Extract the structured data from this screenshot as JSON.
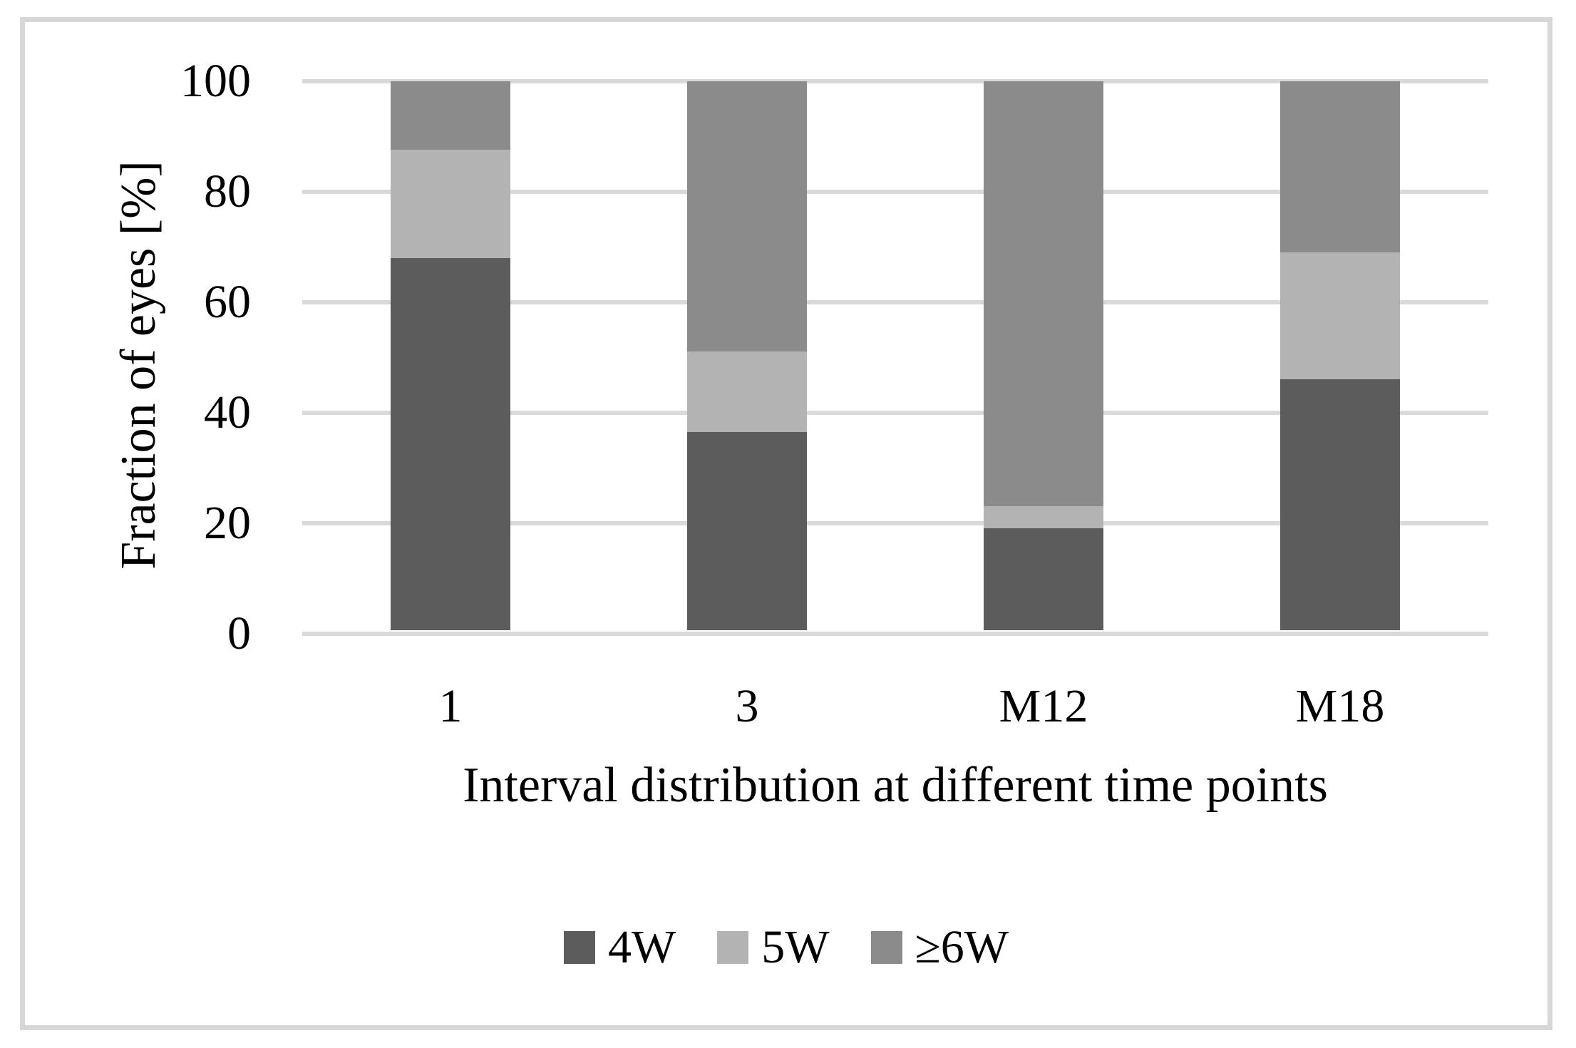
{
  "figure": {
    "background": "#ffffff",
    "frame_color": "#d7d7d7"
  },
  "chart_data": {
    "type": "bar",
    "stacked": true,
    "title": "",
    "xlabel": "Interval distribution at different time points",
    "ylabel": "Fraction of eyes [%]",
    "categories": [
      "1",
      "3",
      "M12",
      "M18"
    ],
    "series": [
      {
        "name": "4W",
        "color": "#5c5c5c",
        "values": [
          68,
          36.5,
          19,
          46
        ]
      },
      {
        "name": "5W",
        "color": "#b3b3b3",
        "values": [
          19.5,
          14.5,
          4,
          23
        ]
      },
      {
        "name": "≥6W",
        "color": "#8b8b8b",
        "values": [
          12.5,
          49,
          77,
          31
        ]
      }
    ],
    "ylim": [
      0,
      100
    ],
    "yticks": [
      0,
      20,
      40,
      60,
      80,
      100
    ],
    "grid": true,
    "gridline_color": "#d9d9d9",
    "legend_position": "bottom"
  }
}
